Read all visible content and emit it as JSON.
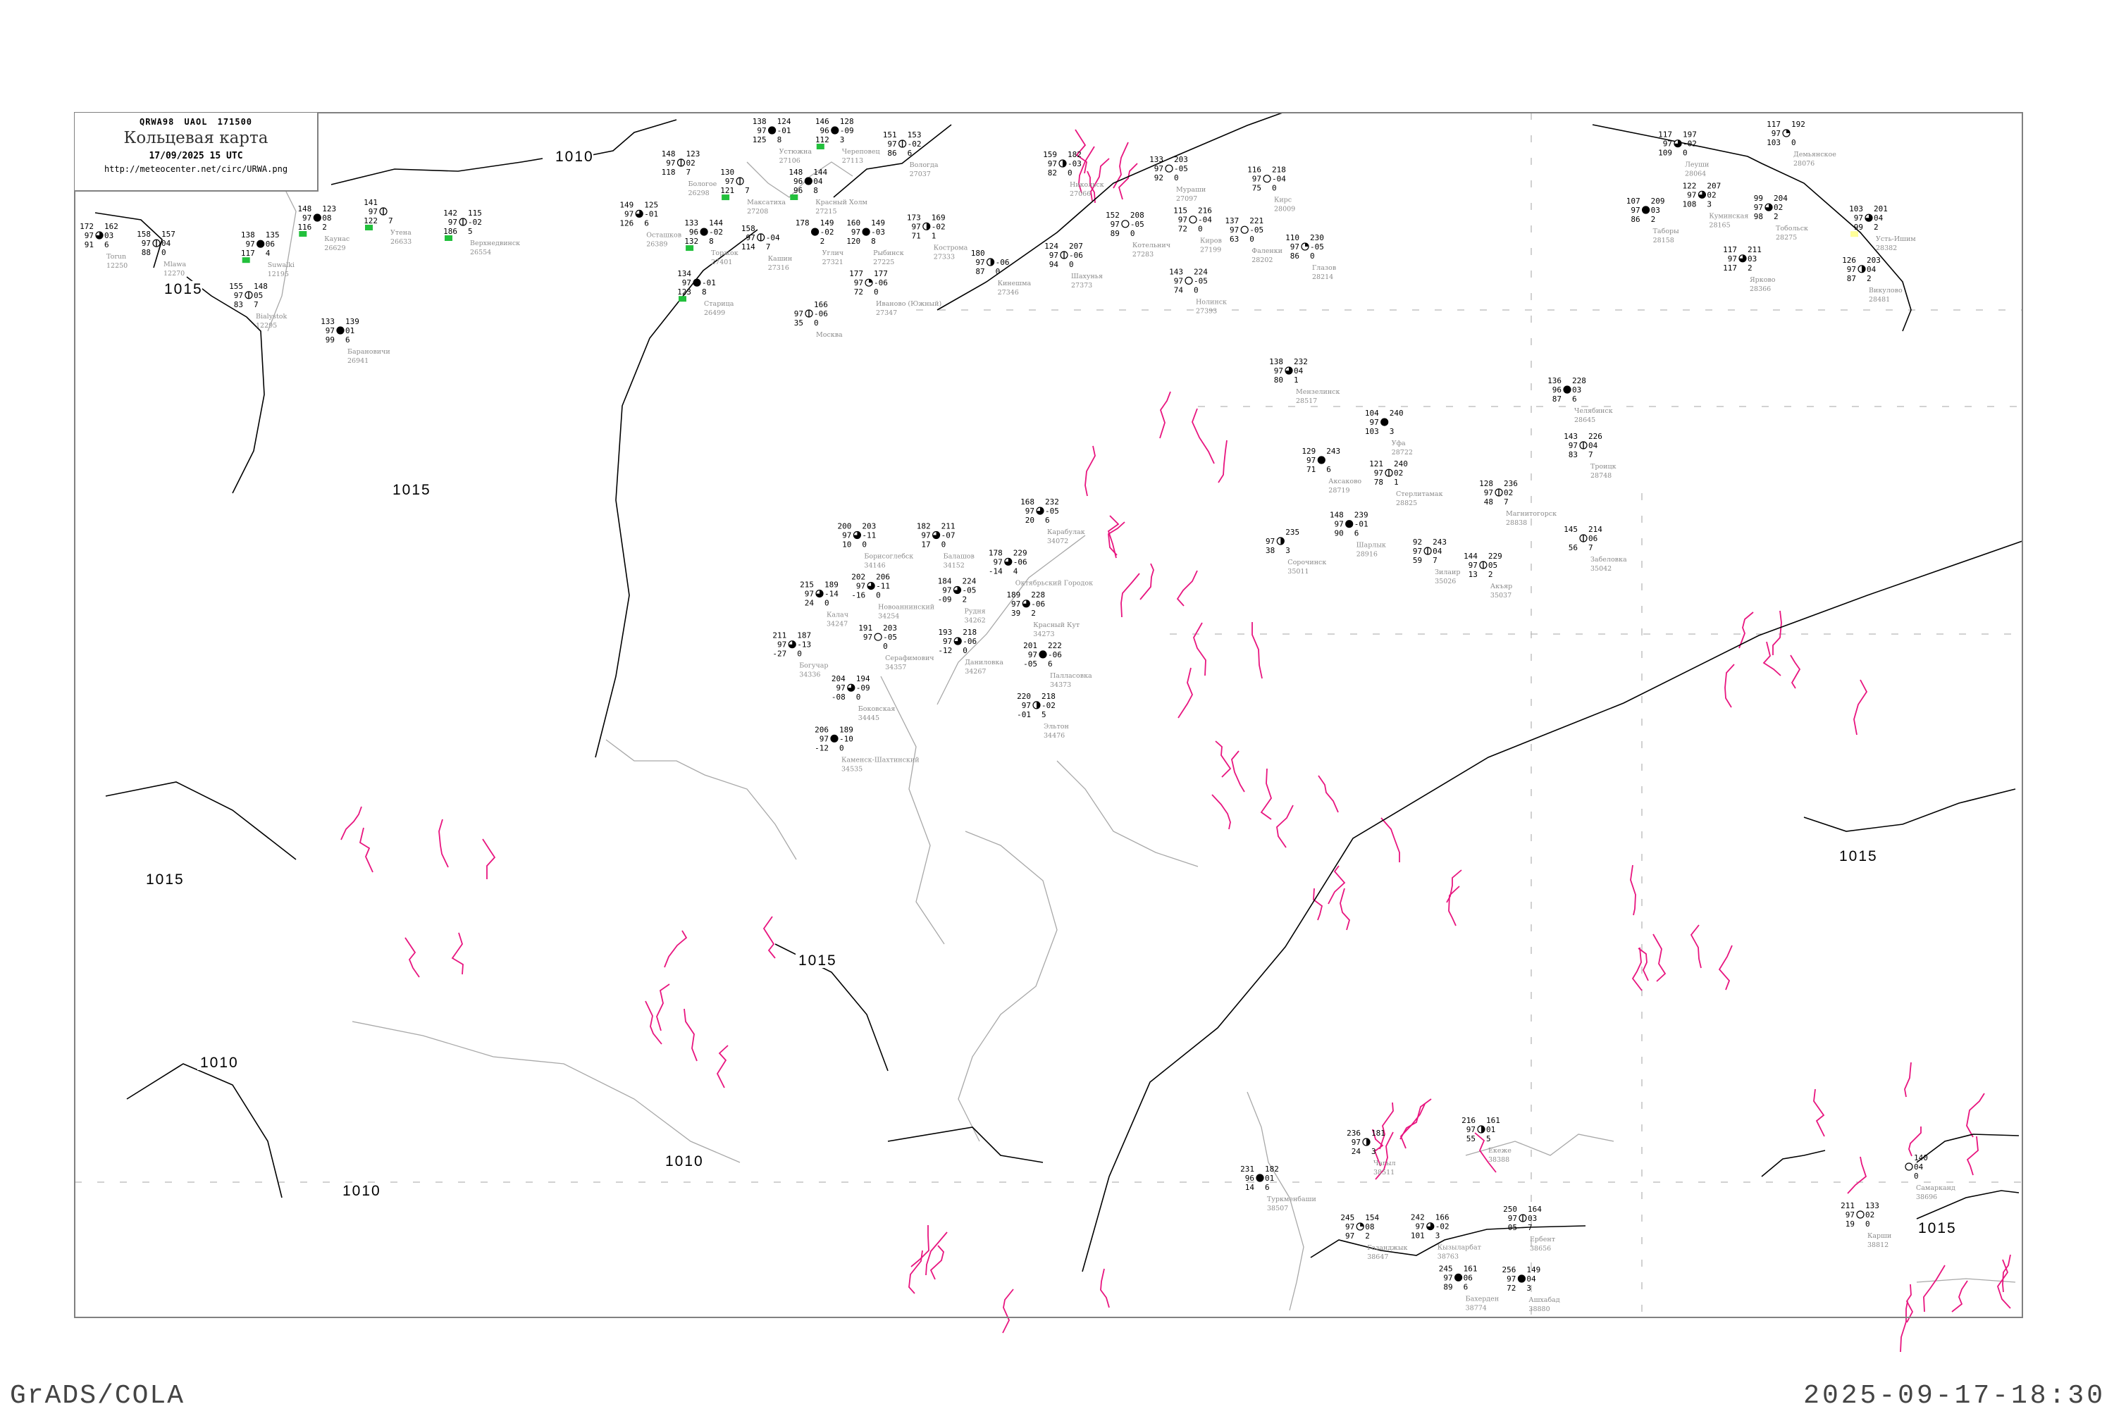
{
  "title_box": {
    "header": "QRWA98  UAOL  171500",
    "title": "Кольцевая карта",
    "datetime": "17/09/2025 15 UTC",
    "url": "http://meteocenter.net/circ/URWA.png"
  },
  "footer": {
    "software": "GrADS/COLA",
    "timestamp": "2025-09-17-18:30"
  },
  "colors": {
    "isobar": "#000000",
    "coastline": "#a8a8a8",
    "front_magenta": "#e8157f",
    "station_name": "#8c8c8c",
    "marker_green": "#22c03c",
    "marker_yellow": "#ffff99"
  },
  "isobar_labels": [
    "1010",
    "1015",
    "1015",
    "1015",
    "1010",
    "1015",
    "1010",
    "1010",
    "1015",
    "1015"
  ],
  "stations": [
    {
      "name": "Утена",
      "id": "26633",
      "tl": "141",
      "ml": "97",
      "bl": "122",
      "tr": "",
      "mr": "",
      "br": "7",
      "cloud": 0.125,
      "mark": "green"
    },
    {
      "name": "Верхнедвинск",
      "id": "26554",
      "tl": "142",
      "ml": "97",
      "bl": "186",
      "tr": "115",
      "mr": "-02",
      "br": "5",
      "cloud": 0.125,
      "mark": "green"
    },
    {
      "name": "Каунас",
      "id": "26629",
      "tl": "148",
      "ml": "97",
      "bl": "116",
      "tr": "123",
      "mr": "08",
      "br": "2",
      "cloud": 1,
      "mark": "green"
    },
    {
      "name": "Torun",
      "id": "12250",
      "tl": "172",
      "ml": "97",
      "bl": "91",
      "tr": "162",
      "mr": "03",
      "br": "6",
      "cloud": 0.75
    },
    {
      "name": "Mlawa",
      "id": "12270",
      "tl": "158",
      "ml": "97",
      "bl": "88",
      "tr": "157",
      "mr": "04",
      "br": "0",
      "cloud": 0.125
    },
    {
      "name": "Suwalki",
      "id": "12195",
      "tl": "138",
      "ml": "97",
      "bl": "117",
      "tr": "135",
      "mr": "06",
      "br": "4",
      "cloud": 1,
      "mark": "green"
    },
    {
      "name": "Bialystok",
      "id": "12295",
      "tl": "155",
      "ml": "97",
      "bl": "83",
      "tr": "148",
      "mr": "05",
      "br": "7",
      "cloud": 0.125
    },
    {
      "name": "Барановичи",
      "id": "26941",
      "tl": "133",
      "ml": "97",
      "bl": "99",
      "tr": "139",
      "mr": "01",
      "br": "6",
      "cloud": 1
    },
    {
      "name": "Бологое",
      "id": "26298",
      "tl": "148",
      "ml": "97",
      "bl": "118",
      "tr": "123",
      "mr": "02",
      "br": "7",
      "cloud": 0.125
    },
    {
      "name": "Осташков",
      "id": "26389",
      "tl": "149",
      "ml": "97",
      "bl": "126",
      "tr": "125",
      "mr": "-01",
      "br": "6",
      "cloud": 0.75
    },
    {
      "name": "Устюжна",
      "id": "27106",
      "tl": "138",
      "ml": "97",
      "bl": "125",
      "tr": "124",
      "mr": "-01",
      "br": "8",
      "cloud": 1
    },
    {
      "name": "Череповец",
      "id": "27113",
      "tl": "146",
      "ml": "96",
      "bl": "112",
      "tr": "128",
      "mr": "-09",
      "br": "3",
      "cloud": 1,
      "mark": "green"
    },
    {
      "name": "Вологда",
      "id": "27037",
      "tl": "151",
      "ml": "97",
      "bl": "86",
      "tr": "153",
      "mr": "-02",
      "br": "6",
      "cloud": 0.125
    },
    {
      "name": "Максатиха",
      "id": "27208",
      "tl": "130",
      "ml": "97",
      "bl": "121",
      "tr": "",
      "mr": "",
      "br": "7",
      "cloud": 0.125,
      "mark": "green"
    },
    {
      "name": "Красный Холм",
      "id": "27215",
      "tl": "148",
      "ml": "96",
      "bl": "96",
      "tr": "144",
      "mr": "04",
      "br": "8",
      "cloud": 1,
      "mark": "green"
    },
    {
      "name": "Рыбинск",
      "id": "27225",
      "tl": "160",
      "ml": "97",
      "bl": "120",
      "tr": "149",
      "mr": "-03",
      "br": "8",
      "cloud": 1
    },
    {
      "name": "Кашин",
      "id": "27316",
      "tl": "158",
      "ml": "97",
      "bl": "114",
      "tr": "",
      "mr": "-04",
      "br": "7",
      "cloud": 0.125
    },
    {
      "name": "Углич",
      "id": "27321",
      "tl": "178",
      "ml": "",
      "bl": "",
      "tr": "149",
      "mr": "-02",
      "br": "2",
      "cloud": 1
    },
    {
      "name": "Торжок",
      "id": "27401",
      "tl": "133",
      "ml": "96",
      "bl": "132",
      "tr": "144",
      "mr": "-02",
      "br": "8",
      "cloud": 1,
      "mark": "green"
    },
    {
      "name": "Старица",
      "id": "26499",
      "tl": "134",
      "ml": "97",
      "bl": "123",
      "tr": "",
      "mr": "-01",
      "br": "8",
      "cloud": 1,
      "mark": "green"
    },
    {
      "name": "Кострома",
      "id": "27333",
      "tl": "173",
      "ml": "97",
      "bl": "71",
      "tr": "169",
      "mr": "-02",
      "br": "1",
      "cloud": 0.5
    },
    {
      "name": "Иваново (Южный)",
      "id": "27347",
      "tl": "177",
      "ml": "97",
      "bl": "72",
      "tr": "177",
      "mr": "-06",
      "br": "0",
      "cloud": 0.25
    },
    {
      "name": "Кинешма",
      "id": "27346",
      "tl": "180",
      "ml": "97",
      "bl": "87",
      "tr": "",
      "mr": "-06",
      "br": "0",
      "cloud": 0.5
    },
    {
      "name": "Москва",
      "id": "",
      "tl": "",
      "ml": "97",
      "bl": "35",
      "tr": "166",
      "mr": "-06",
      "br": "0",
      "cloud": 0.125
    },
    {
      "name": "Никольск",
      "id": "27066",
      "tl": "159",
      "ml": "97",
      "bl": "82",
      "tr": "182",
      "mr": "-03",
      "br": "0",
      "cloud": 0.5
    },
    {
      "name": "Мураши",
      "id": "27097",
      "tl": "133",
      "ml": "97",
      "bl": "92",
      "tr": "203",
      "mr": "-05",
      "br": "0",
      "cloud": 0
    },
    {
      "name": "Киров",
      "id": "27199",
      "tl": "115",
      "ml": "97",
      "bl": "72",
      "tr": "216",
      "mr": "-04",
      "br": "0",
      "cloud": 0
    },
    {
      "name": "Котельнич",
      "id": "27283",
      "tl": "152",
      "ml": "97",
      "bl": "89",
      "tr": "208",
      "mr": "-05",
      "br": "0",
      "cloud": 0
    },
    {
      "name": "Шахунья",
      "id": "27373",
      "tl": "124",
      "ml": "97",
      "bl": "94",
      "tr": "207",
      "mr": "-06",
      "br": "0",
      "cloud": 0.125
    },
    {
      "name": "Кирс",
      "id": "28009",
      "tl": "116",
      "ml": "97",
      "bl": "75",
      "tr": "218",
      "mr": "-04",
      "br": "0",
      "cloud": 0
    },
    {
      "name": "Фаленки",
      "id": "28202",
      "tl": "137",
      "ml": "97",
      "bl": "63",
      "tr": "221",
      "mr": "-05",
      "br": "0",
      "cloud": 0
    },
    {
      "name": "Глазов",
      "id": "28214",
      "tl": "110",
      "ml": "97",
      "bl": "86",
      "tr": "230",
      "mr": "-05",
      "br": "0",
      "cloud": 0.25
    },
    {
      "name": "Нолинск",
      "id": "27393",
      "tl": "143",
      "ml": "97",
      "bl": "74",
      "tr": "224",
      "mr": "-05",
      "br": "0",
      "cloud": 0
    },
    {
      "name": "Леуши",
      "id": "28064",
      "tl": "117",
      "ml": "97",
      "bl": "109",
      "tr": "197",
      "mr": "-02",
      "br": "0",
      "cloud": 0.75
    },
    {
      "name": "Демьянское",
      "id": "28076",
      "tl": "117",
      "ml": "97",
      "bl": "103",
      "tr": "192",
      "mr": "",
      "br": "0",
      "cloud": 0.25
    },
    {
      "name": "Куминская",
      "id": "28165",
      "tl": "122",
      "ml": "97",
      "bl": "108",
      "tr": "207",
      "mr": "02",
      "br": "3",
      "cloud": 0.75
    },
    {
      "name": "Таборы",
      "id": "28158",
      "tl": "107",
      "ml": "97",
      "bl": "86",
      "tr": "209",
      "mr": "03",
      "br": "2",
      "cloud": 1
    },
    {
      "name": "Тобольск",
      "id": "28275",
      "tl": "99",
      "ml": "97",
      "bl": "98",
      "tr": "204",
      "mr": "02",
      "br": "2",
      "cloud": 0.75
    },
    {
      "name": "Усть-Ишим",
      "id": "28382",
      "tl": "103",
      "ml": "97",
      "bl": "99",
      "tr": "201",
      "mr": "04",
      "br": "2",
      "cloud": 0.75,
      "mark": "yellow"
    },
    {
      "name": "Ярково",
      "id": "28366",
      "tl": "117",
      "ml": "97",
      "bl": "117",
      "tr": "211",
      "mr": "03",
      "br": "2",
      "cloud": 0.75
    },
    {
      "name": "Викулово",
      "id": "28481",
      "tl": "126",
      "ml": "97",
      "bl": "87",
      "tr": "203",
      "mr": "04",
      "br": "2",
      "cloud": 0.5
    },
    {
      "name": "Мензелинск",
      "id": "28517",
      "tl": "138",
      "ml": "97",
      "bl": "80",
      "tr": "232",
      "mr": "04",
      "br": "1",
      "cloud": 0.75
    },
    {
      "name": "Уфа",
      "id": "28722",
      "tl": "104",
      "ml": "97",
      "bl": "103",
      "tr": "240",
      "mr": "",
      "br": "3",
      "cloud": 1
    },
    {
      "name": "Аксаково",
      "id": "28719",
      "tl": "129",
      "ml": "97",
      "bl": "71",
      "tr": "243",
      "mr": "",
      "br": "6",
      "cloud": 1
    },
    {
      "name": "Стерлитамак",
      "id": "28825",
      "tl": "121",
      "ml": "97",
      "bl": "78",
      "tr": "240",
      "mr": "02",
      "br": "1",
      "cloud": 0.125
    },
    {
      "name": "Шарлык",
      "id": "28916",
      "tl": "148",
      "ml": "97",
      "bl": "90",
      "tr": "239",
      "mr": "-01",
      "br": "6",
      "cloud": 1
    },
    {
      "name": "Магнитогорск",
      "id": "28838",
      "tl": "128",
      "ml": "97",
      "bl": "48",
      "tr": "236",
      "mr": "02",
      "br": "7",
      "cloud": 0.125
    },
    {
      "name": "Челябинск",
      "id": "28645",
      "tl": "136",
      "ml": "96",
      "bl": "87",
      "tr": "228",
      "mr": "03",
      "br": "6",
      "cloud": 1
    },
    {
      "name": "Троицк",
      "id": "28748",
      "tl": "143",
      "ml": "97",
      "bl": "83",
      "tr": "226",
      "mr": "04",
      "br": "7",
      "cloud": 0.125
    },
    {
      "name": "Забеловка",
      "id": "35042",
      "tl": "145",
      "ml": "",
      "bl": "56",
      "tr": "214",
      "mr": "06",
      "br": "7",
      "cloud": 0.125
    },
    {
      "name": "Сорочинск",
      "id": "35011",
      "tl": "",
      "ml": "97",
      "bl": "38",
      "tr": "235",
      "mr": "",
      "br": "3",
      "cloud": 0.5
    },
    {
      "name": "Зилаир",
      "id": "35026",
      "tl": "92",
      "ml": "97",
      "bl": "59",
      "tr": "243",
      "mr": "04",
      "br": "7",
      "cloud": 0.125
    },
    {
      "name": "Акъяр",
      "id": "35037",
      "tl": "144",
      "ml": "97",
      "bl": "13",
      "tr": "229",
      "mr": "05",
      "br": "2",
      "cloud": 0.125
    },
    {
      "name": "Борисоглебск",
      "id": "34146",
      "tl": "200",
      "ml": "97",
      "bl": "10",
      "tr": "203",
      "mr": "-11",
      "br": "0",
      "cloud": 0.75
    },
    {
      "name": "Балашов",
      "id": "34152",
      "tl": "182",
      "ml": "97",
      "bl": "17",
      "tr": "211",
      "mr": "-07",
      "br": "0",
      "cloud": 0.75
    },
    {
      "name": "Калач",
      "id": "34247",
      "tl": "215",
      "ml": "97",
      "bl": "24",
      "tr": "189",
      "mr": "-14",
      "br": "0",
      "cloud": 0.75
    },
    {
      "name": "Новоаннинский",
      "id": "34254",
      "tl": "202",
      "ml": "97",
      "bl": "-16",
      "tr": "206",
      "mr": "-11",
      "br": "0",
      "cloud": 0.75
    },
    {
      "name": "Даниловка",
      "id": "34267",
      "tl": "193",
      "ml": "97",
      "bl": "-12",
      "tr": "218",
      "mr": "-06",
      "br": "0",
      "cloud": 0.75
    },
    {
      "name": "Рудня",
      "id": "34262",
      "tl": "184",
      "ml": "97",
      "bl": "-09",
      "tr": "224",
      "mr": "-05",
      "br": "2",
      "cloud": 0.75
    },
    {
      "name": "Карабулак",
      "id": "34072",
      "tl": "168",
      "ml": "97",
      "bl": "20",
      "tr": "232",
      "mr": "-05",
      "br": "6",
      "cloud": 0.75
    },
    {
      "name": "Октябрьский Городок",
      "id": "",
      "tl": "178",
      "ml": "97",
      "bl": "-14",
      "tr": "229",
      "mr": "-06",
      "br": "4",
      "cloud": 0.75
    },
    {
      "name": "Красный Кут",
      "id": "34273",
      "tl": "189",
      "ml": "97",
      "bl": "39",
      "tr": "228",
      "mr": "-06",
      "br": "2",
      "cloud": 0.75
    },
    {
      "name": "Палласовка",
      "id": "34373",
      "tl": "201",
      "ml": "97",
      "bl": "-05",
      "tr": "222",
      "mr": "-06",
      "br": "6",
      "cloud": 1
    },
    {
      "name": "Эльтон",
      "id": "34476",
      "tl": "220",
      "ml": "97",
      "bl": "-01",
      "tr": "218",
      "mr": "-02",
      "br": "5",
      "cloud": 0.5
    },
    {
      "name": "Богучар",
      "id": "34336",
      "tl": "211",
      "ml": "97",
      "bl": "-27",
      "tr": "187",
      "mr": "-13",
      "br": "0",
      "cloud": 0.75
    },
    {
      "name": "Серафимович",
      "id": "34357",
      "tl": "191",
      "ml": "97",
      "bl": "",
      "tr": "203",
      "mr": "-05",
      "br": "0",
      "cloud": 0
    },
    {
      "name": "Боковская",
      "id": "34445",
      "tl": "204",
      "ml": "97",
      "bl": "-08",
      "tr": "194",
      "mr": "-09",
      "br": "0",
      "cloud": 0.75
    },
    {
      "name": "Каменск-Шахтинский",
      "id": "34535",
      "tl": "206",
      "ml": "97",
      "bl": "-12",
      "tr": "189",
      "mr": "-10",
      "br": "0",
      "cloud": 1
    },
    {
      "name": "Чагыл",
      "id": "38511",
      "tl": "236",
      "ml": "97",
      "bl": "24",
      "tr": "181",
      "mr": "",
      "br": "3",
      "cloud": 0.5
    },
    {
      "name": "Екеже",
      "id": "38388",
      "tl": "216",
      "ml": "97",
      "bl": "55",
      "tr": "161",
      "mr": "01",
      "br": "5",
      "cloud": 0.5
    },
    {
      "name": "Туркменбаши",
      "id": "38507",
      "tl": "231",
      "ml": "96",
      "bl": "14",
      "tr": "182",
      "mr": "01",
      "br": "6",
      "cloud": 1
    },
    {
      "name": "Газанджык",
      "id": "38647",
      "tl": "245",
      "ml": "97",
      "bl": "97",
      "tr": "154",
      "mr": "08",
      "br": "2",
      "cloud": 0.25
    },
    {
      "name": "Кызыларбат",
      "id": "38763",
      "tl": "242",
      "ml": "97",
      "bl": "101",
      "tr": "166",
      "mr": "-02",
      "br": "3",
      "cloud": 0.75
    },
    {
      "name": "Ербент",
      "id": "38656",
      "tl": "250",
      "ml": "97",
      "bl": "05",
      "tr": "164",
      "mr": "03",
      "br": "7",
      "cloud": 0.125
    },
    {
      "name": "Бахерден",
      "id": "38774",
      "tl": "245",
      "ml": "97",
      "bl": "89",
      "tr": "161",
      "mr": "06",
      "br": "6",
      "cloud": 1
    },
    {
      "name": "Ашхабад",
      "id": "38880",
      "tl": "256",
      "ml": "97",
      "bl": "72",
      "tr": "149",
      "mr": "04",
      "br": "3",
      "cloud": 1
    },
    {
      "name": "Карши",
      "id": "38812",
      "tl": "211",
      "ml": "97",
      "bl": "19",
      "tr": "133",
      "mr": "02",
      "br": "0",
      "cloud": 0
    },
    {
      "name": "Самарканд",
      "id": "38696",
      "tl": "",
      "ml": "",
      "bl": "",
      "tr": "140",
      "mr": "04",
      "br": "0",
      "cloud": 0
    }
  ]
}
